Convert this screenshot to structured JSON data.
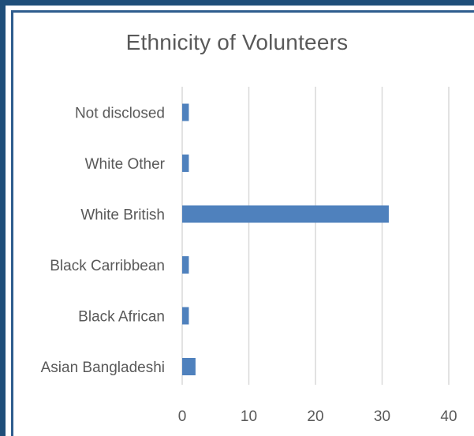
{
  "chart_data": {
    "type": "bar",
    "orientation": "horizontal",
    "title": "Ethnicity of Volunteers",
    "categories": [
      "Asian Bangladeshi",
      "Black African",
      "Black Carribbean",
      "White British",
      "White Other",
      "Not disclosed"
    ],
    "values": [
      2,
      1,
      1,
      31,
      1,
      1
    ],
    "xlim": [
      0,
      40
    ],
    "xticks": [
      "0",
      "10",
      "20",
      "30",
      "40"
    ],
    "grid": true,
    "bar_color": "#4f81bd"
  }
}
